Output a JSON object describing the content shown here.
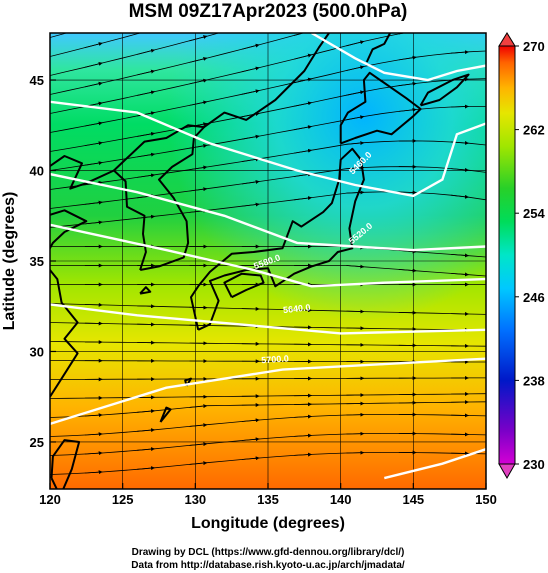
{
  "title": "MSM 09Z17Apr2023 (500.0hPa)",
  "x_axis": {
    "label": "Longitude (degrees)",
    "ticks": [
      "120",
      "125",
      "130",
      "135",
      "140",
      "145",
      "150"
    ],
    "range": [
      120,
      150
    ]
  },
  "y_axis": {
    "label": "Latitude  (degrees)",
    "ticks": [
      "25",
      "30",
      "35",
      "40",
      "45"
    ],
    "range": [
      22.4,
      47.6
    ]
  },
  "colorbar": {
    "ticks": [
      "230",
      "238",
      "246",
      "254",
      "262",
      "270"
    ],
    "range": [
      230,
      270
    ],
    "colors": [
      "#d400d4",
      "#7a00c8",
      "#0018c8",
      "#0070ff",
      "#00c8ff",
      "#00e6c8",
      "#00dc5a",
      "#28d028",
      "#a0e600",
      "#e6e600",
      "#ffb400",
      "#ff6400",
      "#f00000"
    ]
  },
  "contour_labels": [
    "5700.0",
    "5640.0",
    "5580.0",
    "5520.0",
    "5460.0"
  ],
  "footer": {
    "line1": "Drawing by DCL (https://www.gfd-dennou.org/library/dcl/)",
    "line2": "Data from http://database.rish.kyoto-u.ac.jp/arch/jmadata/"
  },
  "colors": {
    "arrow": "#000000",
    "contour": "#ffffff",
    "coast": "#000000"
  }
}
